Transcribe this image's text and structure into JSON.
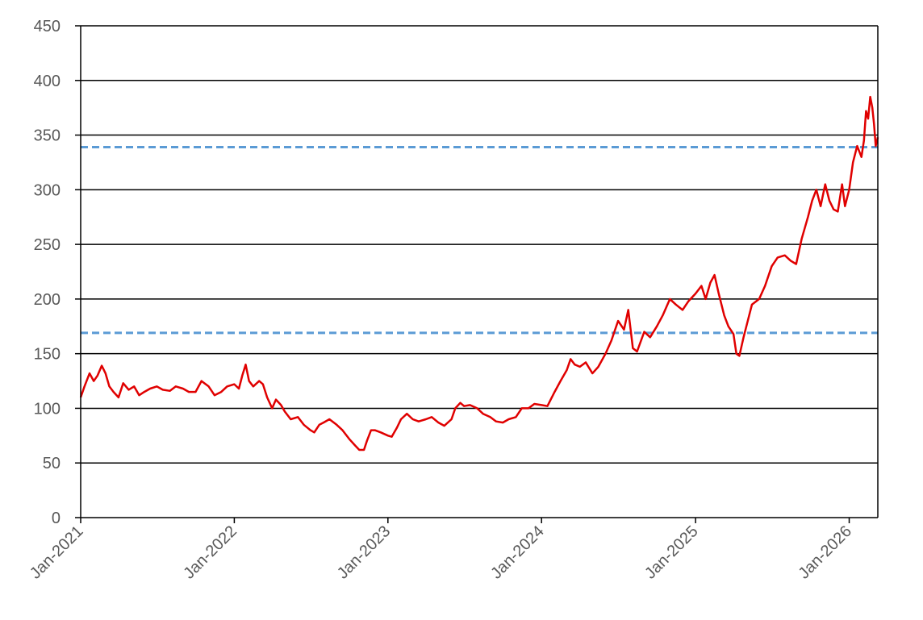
{
  "chart_data": {
    "type": "line",
    "title": "",
    "xlabel": "",
    "ylabel": "",
    "ylim": [
      0,
      450
    ],
    "xlim": [
      "2021-01-01",
      "2026-03-10"
    ],
    "grid": "horizontal",
    "legend": "none",
    "colors": {
      "series": "#e00000",
      "reference": "#5b9bd5",
      "grid": "#000000",
      "text": "#595959"
    },
    "y_ticks": [
      {
        "value": 0,
        "label": "0"
      },
      {
        "value": 50,
        "label": "50"
      },
      {
        "value": 100,
        "label": "100"
      },
      {
        "value": 150,
        "label": "150"
      },
      {
        "value": 200,
        "label": "200"
      },
      {
        "value": 250,
        "label": "250"
      },
      {
        "value": 300,
        "label": "300"
      },
      {
        "value": 350,
        "label": "350"
      },
      {
        "value": 400,
        "label": "400"
      },
      {
        "value": 450,
        "label": "450"
      }
    ],
    "x_ticks": [
      {
        "value": "2021-01-01",
        "label": "Jan-2021"
      },
      {
        "value": "2022-01-01",
        "label": "Jan-2022"
      },
      {
        "value": "2023-01-01",
        "label": "Jan-2023"
      },
      {
        "value": "2024-01-01",
        "label": "Jan-2024"
      },
      {
        "value": "2025-01-01",
        "label": "Jan-2025"
      },
      {
        "value": "2026-01-01",
        "label": "Jan-2026"
      }
    ],
    "reference_lines": [
      {
        "y": 339,
        "style": "dashed"
      },
      {
        "y": 169,
        "style": "dashed"
      }
    ],
    "series": [
      {
        "points": [
          [
            "2021-01-01",
            110
          ],
          [
            "2021-01-10",
            120
          ],
          [
            "2021-01-22",
            132
          ],
          [
            "2021-02-01",
            125
          ],
          [
            "2021-02-10",
            130
          ],
          [
            "2021-02-20",
            139
          ],
          [
            "2021-03-01",
            132
          ],
          [
            "2021-03-10",
            120
          ],
          [
            "2021-03-20",
            115
          ],
          [
            "2021-04-01",
            110
          ],
          [
            "2021-04-12",
            123
          ],
          [
            "2021-04-25",
            117
          ],
          [
            "2021-05-08",
            120
          ],
          [
            "2021-05-20",
            112
          ],
          [
            "2021-06-01",
            115
          ],
          [
            "2021-06-15",
            118
          ],
          [
            "2021-07-01",
            120
          ],
          [
            "2021-07-15",
            117
          ],
          [
            "2021-08-01",
            116
          ],
          [
            "2021-08-15",
            120
          ],
          [
            "2021-09-01",
            118
          ],
          [
            "2021-09-15",
            115
          ],
          [
            "2021-10-01",
            115
          ],
          [
            "2021-10-15",
            125
          ],
          [
            "2021-11-01",
            120
          ],
          [
            "2021-11-15",
            112
          ],
          [
            "2021-12-01",
            115
          ],
          [
            "2021-12-15",
            120
          ],
          [
            "2022-01-01",
            122
          ],
          [
            "2022-01-12",
            118
          ],
          [
            "2022-01-20",
            130
          ],
          [
            "2022-01-28",
            140
          ],
          [
            "2022-02-05",
            125
          ],
          [
            "2022-02-15",
            120
          ],
          [
            "2022-03-01",
            125
          ],
          [
            "2022-03-10",
            122
          ],
          [
            "2022-03-20",
            110
          ],
          [
            "2022-04-01",
            100
          ],
          [
            "2022-04-10",
            108
          ],
          [
            "2022-04-22",
            103
          ],
          [
            "2022-05-01",
            97
          ],
          [
            "2022-05-15",
            90
          ],
          [
            "2022-06-01",
            92
          ],
          [
            "2022-06-15",
            85
          ],
          [
            "2022-07-01",
            80
          ],
          [
            "2022-07-10",
            78
          ],
          [
            "2022-07-22",
            85
          ],
          [
            "2022-08-01",
            87
          ],
          [
            "2022-08-15",
            90
          ],
          [
            "2022-09-01",
            85
          ],
          [
            "2022-09-15",
            80
          ],
          [
            "2022-10-01",
            72
          ],
          [
            "2022-10-15",
            66
          ],
          [
            "2022-10-25",
            62
          ],
          [
            "2022-11-05",
            62
          ],
          [
            "2022-11-12",
            70
          ],
          [
            "2022-11-22",
            80
          ],
          [
            "2022-12-01",
            80
          ],
          [
            "2022-12-15",
            78
          ],
          [
            "2023-01-01",
            75
          ],
          [
            "2023-01-10",
            74
          ],
          [
            "2023-01-22",
            82
          ],
          [
            "2023-02-01",
            90
          ],
          [
            "2023-02-15",
            95
          ],
          [
            "2023-03-01",
            90
          ],
          [
            "2023-03-15",
            88
          ],
          [
            "2023-04-01",
            90
          ],
          [
            "2023-04-15",
            92
          ],
          [
            "2023-05-01",
            87
          ],
          [
            "2023-05-15",
            84
          ],
          [
            "2023-06-01",
            90
          ],
          [
            "2023-06-10",
            100
          ],
          [
            "2023-06-22",
            105
          ],
          [
            "2023-07-01",
            102
          ],
          [
            "2023-07-15",
            103
          ],
          [
            "2023-08-01",
            100
          ],
          [
            "2023-08-15",
            95
          ],
          [
            "2023-09-01",
            92
          ],
          [
            "2023-09-15",
            88
          ],
          [
            "2023-10-01",
            87
          ],
          [
            "2023-10-15",
            90
          ],
          [
            "2023-11-01",
            92
          ],
          [
            "2023-11-15",
            100
          ],
          [
            "2023-12-01",
            100
          ],
          [
            "2023-12-15",
            104
          ],
          [
            "2024-01-01",
            103
          ],
          [
            "2024-01-15",
            102
          ],
          [
            "2024-02-01",
            115
          ],
          [
            "2024-02-15",
            125
          ],
          [
            "2024-03-01",
            135
          ],
          [
            "2024-03-10",
            145
          ],
          [
            "2024-03-20",
            140
          ],
          [
            "2024-04-01",
            138
          ],
          [
            "2024-04-15",
            142
          ],
          [
            "2024-05-01",
            132
          ],
          [
            "2024-05-15",
            138
          ],
          [
            "2024-06-01",
            150
          ],
          [
            "2024-06-15",
            162
          ],
          [
            "2024-07-01",
            180
          ],
          [
            "2024-07-15",
            172
          ],
          [
            "2024-07-25",
            190
          ],
          [
            "2024-08-05",
            155
          ],
          [
            "2024-08-15",
            152
          ],
          [
            "2024-09-01",
            170
          ],
          [
            "2024-09-15",
            165
          ],
          [
            "2024-10-01",
            175
          ],
          [
            "2024-10-15",
            185
          ],
          [
            "2024-11-01",
            200
          ],
          [
            "2024-11-15",
            195
          ],
          [
            "2024-12-01",
            190
          ],
          [
            "2024-12-15",
            198
          ],
          [
            "2025-01-01",
            205
          ],
          [
            "2025-01-15",
            212
          ],
          [
            "2025-01-25",
            200
          ],
          [
            "2025-02-05",
            215
          ],
          [
            "2025-02-15",
            222
          ],
          [
            "2025-02-25",
            205
          ],
          [
            "2025-03-10",
            185
          ],
          [
            "2025-03-20",
            175
          ],
          [
            "2025-04-01",
            168
          ],
          [
            "2025-04-08",
            150
          ],
          [
            "2025-04-15",
            148
          ],
          [
            "2025-04-25",
            165
          ],
          [
            "2025-05-05",
            180
          ],
          [
            "2025-05-15",
            195
          ],
          [
            "2025-06-01",
            200
          ],
          [
            "2025-06-15",
            212
          ],
          [
            "2025-07-01",
            230
          ],
          [
            "2025-07-15",
            238
          ],
          [
            "2025-08-01",
            240
          ],
          [
            "2025-08-15",
            235
          ],
          [
            "2025-08-28",
            232
          ],
          [
            "2025-09-10",
            255
          ],
          [
            "2025-09-25",
            275
          ],
          [
            "2025-10-05",
            290
          ],
          [
            "2025-10-15",
            300
          ],
          [
            "2025-10-25",
            285
          ],
          [
            "2025-11-05",
            305
          ],
          [
            "2025-11-15",
            290
          ],
          [
            "2025-11-25",
            282
          ],
          [
            "2025-12-05",
            280
          ],
          [
            "2025-12-15",
            305
          ],
          [
            "2025-12-22",
            285
          ],
          [
            "2026-01-01",
            300
          ],
          [
            "2026-01-10",
            325
          ],
          [
            "2026-01-20",
            340
          ],
          [
            "2026-01-30",
            330
          ],
          [
            "2026-02-05",
            345
          ],
          [
            "2026-02-10",
            372
          ],
          [
            "2026-02-15",
            365
          ],
          [
            "2026-02-20",
            385
          ],
          [
            "2026-02-25",
            375
          ],
          [
            "2026-03-01",
            360
          ],
          [
            "2026-03-05",
            340
          ],
          [
            "2026-03-10",
            348
          ]
        ]
      }
    ]
  }
}
